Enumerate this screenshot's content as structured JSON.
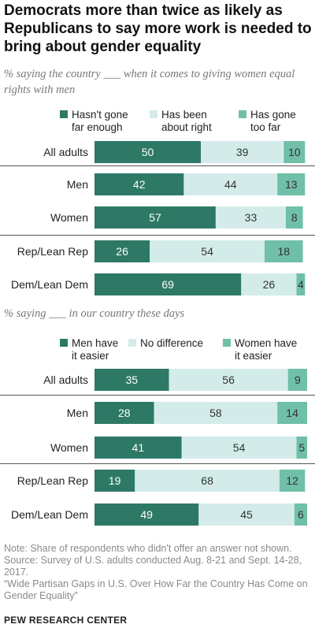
{
  "title": "Democrats more than twice as likely as Republicans to say more work is needed to bring about gender equality",
  "colors": {
    "dark": "#2d7965",
    "light": "#d3ecea",
    "mid": "#70bfa8",
    "divider": "#555555"
  },
  "chart_data": [
    {
      "type": "bar",
      "orientation": "horizontal",
      "stacked": true,
      "subtitle": "% saying the country ___ when it comes to giving women equal rights with men",
      "categories": [
        "All adults",
        "Men",
        "Women",
        "Rep/Lean Rep",
        "Dem/Lean Dem"
      ],
      "series": [
        {
          "name": "Hasn't gone far enough",
          "values": [
            50,
            42,
            57,
            26,
            69
          ]
        },
        {
          "name": "Has been about right",
          "values": [
            39,
            44,
            33,
            54,
            26
          ]
        },
        {
          "name": "Has gone too far",
          "values": [
            10,
            13,
            8,
            18,
            4
          ]
        }
      ],
      "legend": [
        {
          "label": "Hasn't gone\nfar enough"
        },
        {
          "label": "Has been\nabout right"
        },
        {
          "label": "Has gone\ntoo far"
        }
      ],
      "xlim": [
        0,
        100
      ]
    },
    {
      "type": "bar",
      "orientation": "horizontal",
      "stacked": true,
      "subtitle": "% saying ___ in our country these days",
      "categories": [
        "All adults",
        "Men",
        "Women",
        "Rep/Lean Rep",
        "Dem/Lean Dem"
      ],
      "series": [
        {
          "name": "Men have it easier",
          "values": [
            35,
            28,
            41,
            19,
            49
          ]
        },
        {
          "name": "No difference",
          "values": [
            56,
            58,
            54,
            68,
            45
          ]
        },
        {
          "name": "Women have it easier",
          "values": [
            9,
            14,
            5,
            12,
            6
          ]
        }
      ],
      "legend": [
        {
          "label": "Men have\nit easier"
        },
        {
          "label": "No difference"
        },
        {
          "label": "Women have\nit easier"
        }
      ],
      "xlim": [
        0,
        100
      ]
    }
  ],
  "notes": [
    "Note: Share of respondents who didn't offer an answer not shown.",
    "Source: Survey of U.S. adults conducted Aug. 8-21 and Sept. 14-28, 2017.",
    "“Wide Partisan Gaps in U.S. Over How Far the Country Has Come on Gender Equality”"
  ],
  "brand": "PEW RESEARCH CENTER"
}
